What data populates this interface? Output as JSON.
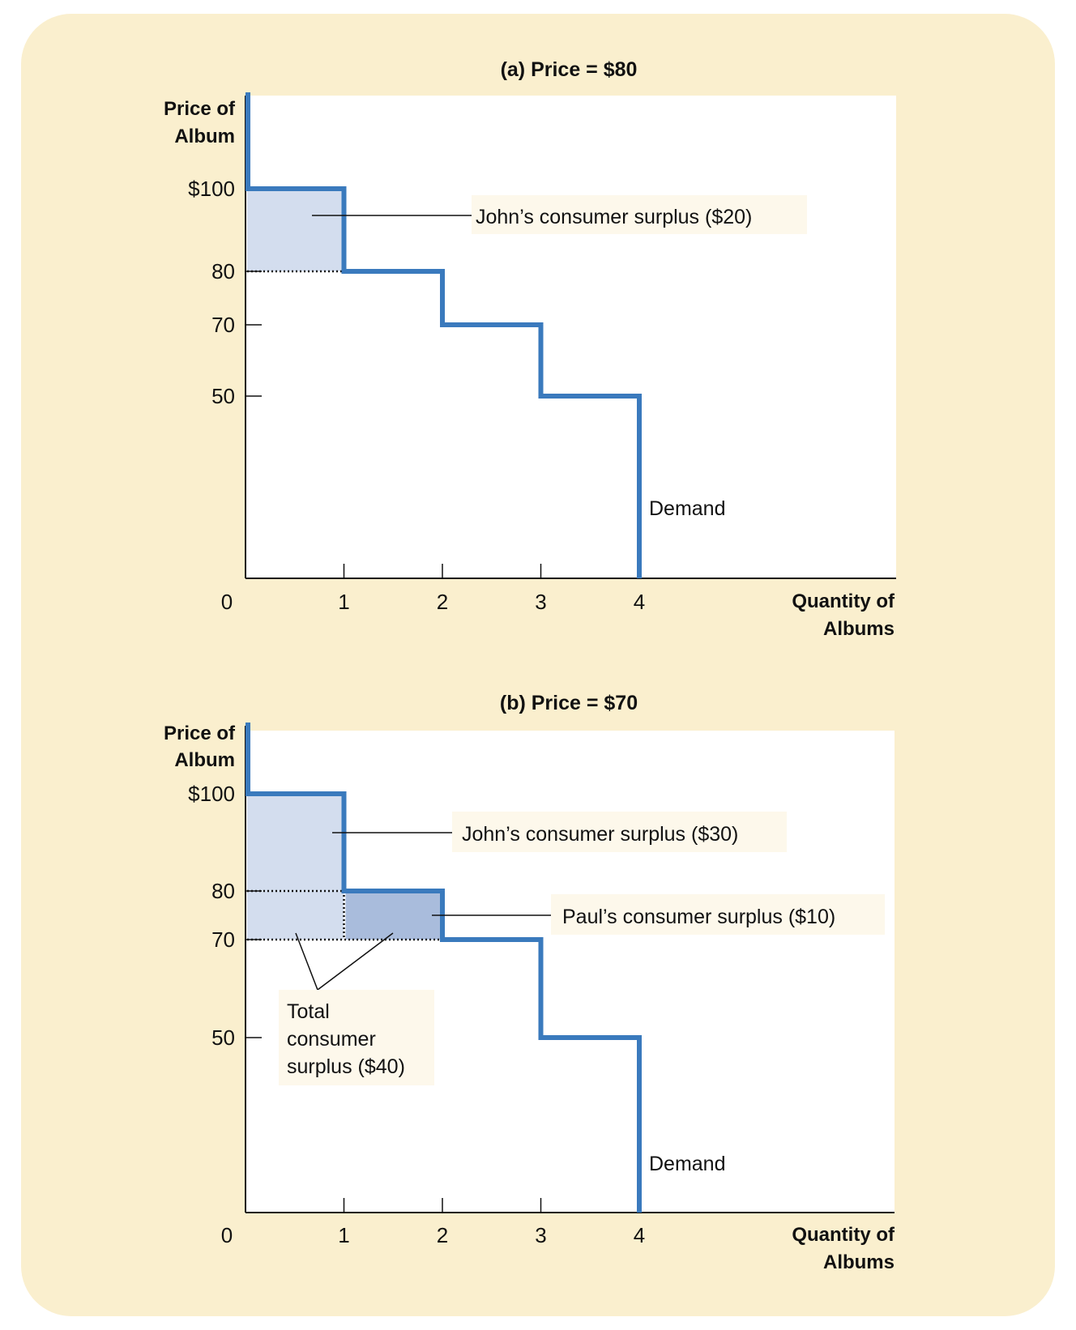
{
  "colors": {
    "background": "#faefce",
    "plot_area": "#ffffff",
    "demand_line": "#3a7abd",
    "surplus_light": "#d3ddee",
    "surplus_dark": "#a9bcdc",
    "label_box": "#fdf8eb"
  },
  "chart_data": [
    {
      "type": "line",
      "title": "(a) Price = $80",
      "ylabel_lines": [
        "Price of",
        "Album"
      ],
      "xlabel_lines": [
        "Quantity of",
        "Albums"
      ],
      "origin_label": "0",
      "y_ticks": [
        {
          "value": 100,
          "label": "$100"
        },
        {
          "value": 80,
          "label": "80"
        },
        {
          "value": 70,
          "label": "70"
        },
        {
          "value": 50,
          "label": "50"
        }
      ],
      "x_ticks": [
        {
          "value": 1,
          "label": "1"
        },
        {
          "value": 2,
          "label": "2"
        },
        {
          "value": 3,
          "label": "3"
        },
        {
          "value": 4,
          "label": "4"
        }
      ],
      "price": 80,
      "demand": {
        "label": "Demand",
        "steps": [
          {
            "q": 1,
            "p": 100
          },
          {
            "q": 2,
            "p": 80
          },
          {
            "q": 3,
            "p": 70
          },
          {
            "q": 4,
            "p": 50
          }
        ]
      },
      "surplus_regions": [
        {
          "q_from": 0,
          "q_to": 1,
          "p_from": 80,
          "p_to": 100,
          "shade": "light"
        }
      ],
      "annotations": [
        {
          "lines": [
            "John’s consumer surplus ($20)"
          ],
          "value": 20
        }
      ]
    },
    {
      "type": "line",
      "title": "(b) Price = $70",
      "ylabel_lines": [
        "Price of",
        "Album"
      ],
      "xlabel_lines": [
        "Quantity of",
        "Albums"
      ],
      "origin_label": "0",
      "y_ticks": [
        {
          "value": 100,
          "label": "$100"
        },
        {
          "value": 80,
          "label": "80"
        },
        {
          "value": 70,
          "label": "70"
        },
        {
          "value": 50,
          "label": "50"
        }
      ],
      "x_ticks": [
        {
          "value": 1,
          "label": "1"
        },
        {
          "value": 2,
          "label": "2"
        },
        {
          "value": 3,
          "label": "3"
        },
        {
          "value": 4,
          "label": "4"
        }
      ],
      "price": 70,
      "demand": {
        "label": "Demand",
        "steps": [
          {
            "q": 1,
            "p": 100
          },
          {
            "q": 2,
            "p": 80
          },
          {
            "q": 3,
            "p": 70
          },
          {
            "q": 4,
            "p": 50
          }
        ]
      },
      "surplus_regions": [
        {
          "q_from": 0,
          "q_to": 1,
          "p_from": 70,
          "p_to": 100,
          "shade": "light"
        },
        {
          "q_from": 1,
          "q_to": 2,
          "p_from": 70,
          "p_to": 80,
          "shade": "dark"
        }
      ],
      "annotations": [
        {
          "lines": [
            "John’s consumer surplus ($30)"
          ],
          "value": 30
        },
        {
          "lines": [
            "Paul’s consumer surplus ($10)"
          ],
          "value": 10
        },
        {
          "lines": [
            "Total",
            "consumer",
            "surplus ($40)"
          ],
          "value": 40
        }
      ]
    }
  ]
}
